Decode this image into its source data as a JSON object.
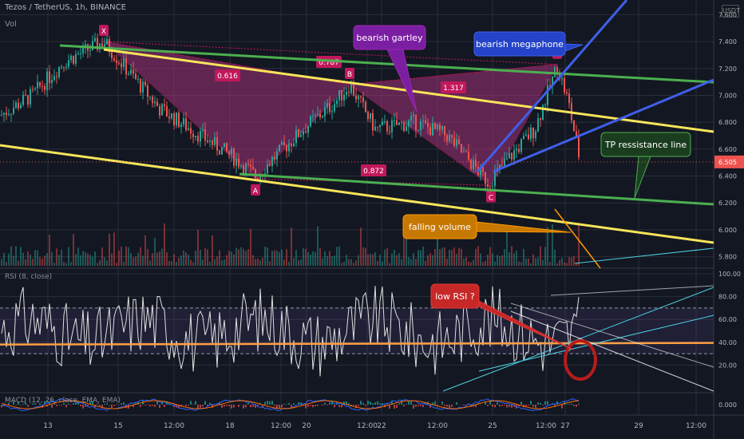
{
  "header": {
    "symbol_line": "Tezos / TetherUS, 1h, BINANCE",
    "volume_label": "Vol",
    "rsi_label": "RSI (8, close)",
    "macd_label": "MACD (12, 26, close, EMA, EMA)",
    "currency_badge": "USDT"
  },
  "colors": {
    "background": "#131722",
    "up": "#26a69a",
    "down": "#ef5350",
    "pattern_fill": "#a1327a",
    "channel_yellow": "#f7e55a",
    "channel_green": "#4caf50",
    "megaphone_blue": "#3f5fe8",
    "rsi_line": "#e0e0e0",
    "rsi_ma": "#ff9f43",
    "price_tag": "#ef5350"
  },
  "chart_data": [
    {
      "type": "candlestick",
      "title": "Tezos / TetherUS, 1h, BINANCE",
      "y_axis_ticks": [
        "7.600",
        "7.400",
        "7.200",
        "7.000",
        "6.800",
        "6.600",
        "6.400",
        "6.200",
        "6.000",
        "5.800"
      ],
      "ylim": [
        5.75,
        7.65
      ],
      "x_axis_ticks": [
        "13",
        "15",
        "12:00",
        "18",
        "12:00",
        "20",
        "12:00",
        "22",
        "12:00",
        "25",
        "12:00",
        "27",
        "29",
        "12:00"
      ],
      "last_price": "6.505",
      "pattern_points": [
        {
          "label": "X",
          "price": 7.4
        },
        {
          "label": "A",
          "price": 6.38
        },
        {
          "label": "B",
          "price": 7.08
        },
        {
          "label": "C",
          "price": 6.33
        },
        {
          "label": "D",
          "price": 7.23
        }
      ],
      "fib_ratios": [
        "0.616",
        "0.787",
        "0.872",
        "1.317"
      ],
      "annotations": [
        "bearish gartley",
        "bearish megaphone",
        "TP ressistance line",
        "falling volume",
        "low RSI ?"
      ]
    },
    {
      "type": "line",
      "title": "RSI (8, close)",
      "y_axis_ticks": [
        "100.00",
        "80.00",
        "60.00",
        "40.00",
        "20.00"
      ],
      "ylim": [
        0,
        100
      ],
      "bands": [
        70,
        30
      ],
      "ma_level": 38
    },
    {
      "type": "bar",
      "title": "MACD",
      "y_axis_ticks": [
        "0.000"
      ]
    }
  ],
  "labels": {
    "gartley": "bearish gartley",
    "megaphone": "bearish megaphone",
    "tp_line": "TP ressistance line",
    "falling_volume": "falling volume",
    "low_rsi": "low RSI ?"
  }
}
